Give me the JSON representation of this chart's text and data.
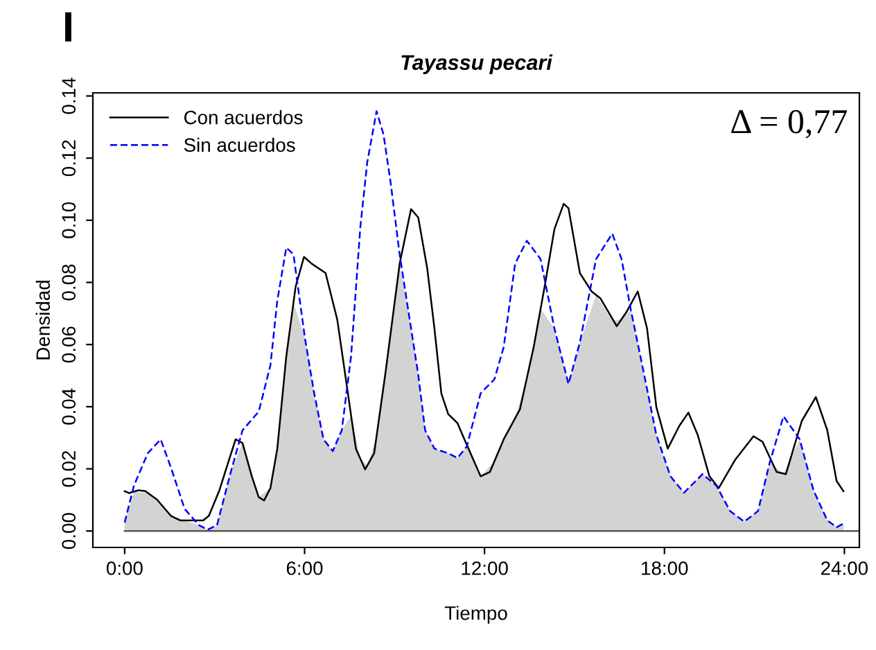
{
  "chart_data": {
    "type": "line",
    "title": "Tayassu pecari",
    "xlabel": "Tiempo",
    "ylabel": "Densidad",
    "annotations": [
      "I",
      "Δ = 0,77"
    ],
    "xlim": [
      -1.06,
      24.5
    ],
    "ylim": [
      -0.0053,
      0.141
    ],
    "xticks": [
      {
        "value": 0,
        "label": "0:00"
      },
      {
        "value": 6,
        "label": "6:00"
      },
      {
        "value": 12,
        "label": "12:00"
      },
      {
        "value": 18,
        "label": "18:00"
      },
      {
        "value": 24,
        "label": "24:00"
      }
    ],
    "yticks": [
      {
        "value": 0,
        "label": "0.00"
      },
      {
        "value": 0.02,
        "label": "0.02"
      },
      {
        "value": 0.04,
        "label": "0.04"
      },
      {
        "value": 0.06,
        "label": "0.06"
      },
      {
        "value": 0.08,
        "label": "0.08"
      },
      {
        "value": 0.1,
        "label": "0.10"
      },
      {
        "value": 0.12,
        "label": "0.12"
      },
      {
        "value": 0.14,
        "label": "0.14"
      }
    ],
    "grid": false,
    "legend": "top left",
    "ref_lines": [
      {
        "axis": "y",
        "value": 0,
        "color": "#555555"
      }
    ],
    "series": [
      {
        "type": "area",
        "color": "#d3d3d3",
        "x": [
          0,
          0.31,
          0.77,
          1.2,
          1.54,
          2.0,
          2.47,
          2.77,
          3.08,
          3.54,
          3.93,
          4.47,
          4.86,
          5.09,
          5.39,
          5.63,
          6.01,
          6.32,
          6.63,
          6.94,
          7.24,
          7.55,
          7.86,
          8.09,
          8.4,
          8.63,
          8.86,
          9.17,
          9.48,
          9.79,
          10.02,
          10.33,
          10.79,
          11.1,
          11.41,
          11.87,
          12.33,
          12.64,
          13.02,
          13.41,
          13.87,
          14.33,
          14.8,
          15.18,
          15.72,
          16.26,
          16.57,
          16.88,
          17.26,
          17.73,
          18.2,
          18.65,
          19.27,
          19.73,
          20.19,
          20.66,
          21.12,
          21.51,
          21.97,
          22.51,
          22.97,
          23.43,
          23.74,
          23.97
        ],
        "values": [
          0.0027,
          0.0126,
          0.0122,
          0.0087,
          0.0049,
          0.0034,
          0.0019,
          0.0004,
          0.0019,
          0.019,
          0.0283,
          0.0109,
          0.0138,
          0.0265,
          0.0562,
          0.0735,
          0.0622,
          0.0443,
          0.0295,
          0.0257,
          0.0324,
          0.0372,
          0.0233,
          0.021,
          0.0305,
          0.0463,
          0.063,
          0.086,
          0.0696,
          0.0503,
          0.0324,
          0.0265,
          0.025,
          0.0235,
          0.0272,
          0.0176,
          0.0224,
          0.0295,
          0.0363,
          0.0492,
          0.0715,
          0.0652,
          0.0473,
          0.0607,
          0.076,
          0.0677,
          0.0681,
          0.0711,
          0.0533,
          0.0309,
          0.0176,
          0.0123,
          0.0183,
          0.0146,
          0.0064,
          0.003,
          0.0064,
          0.022,
          0.0185,
          0.0295,
          0.0131,
          0.0034,
          0.0012,
          0.0024
        ]
      },
      {
        "name": "Con acuerdos",
        "color": "#000000",
        "line_style": "solid",
        "x": [
          0,
          0.15,
          0.46,
          0.69,
          1.08,
          1.54,
          1.85,
          2.62,
          2.81,
          3.16,
          3.51,
          3.7,
          3.93,
          4.24,
          4.47,
          4.65,
          4.86,
          5.09,
          5.39,
          5.7,
          5.98,
          6.24,
          6.7,
          7.09,
          7.4,
          7.71,
          8.02,
          8.32,
          8.71,
          9.17,
          9.55,
          9.79,
          10.09,
          10.33,
          10.56,
          10.79,
          11.1,
          11.33,
          11.87,
          12.18,
          12.64,
          13.18,
          13.64,
          14.03,
          14.33,
          14.64,
          14.8,
          15.18,
          15.57,
          15.87,
          16.41,
          16.73,
          17.11,
          17.42,
          17.73,
          18.11,
          18.5,
          18.8,
          19.11,
          19.5,
          19.81,
          20.35,
          20.97,
          21.27,
          21.74,
          22.05,
          22.58,
          23.05,
          23.43,
          23.74,
          23.97
        ],
        "values": [
          0.0128,
          0.0122,
          0.0131,
          0.0128,
          0.0101,
          0.0049,
          0.0034,
          0.0034,
          0.0049,
          0.0131,
          0.0238,
          0.0295,
          0.0283,
          0.0176,
          0.0109,
          0.0098,
          0.0138,
          0.0265,
          0.0562,
          0.0786,
          0.0882,
          0.086,
          0.083,
          0.068,
          0.0473,
          0.0265,
          0.0198,
          0.025,
          0.0518,
          0.086,
          0.1036,
          0.1009,
          0.0845,
          0.0652,
          0.0443,
          0.0376,
          0.0347,
          0.0295,
          0.0176,
          0.019,
          0.0295,
          0.0391,
          0.0592,
          0.08,
          0.0971,
          0.1053,
          0.1039,
          0.083,
          0.0771,
          0.0748,
          0.0659,
          0.0704,
          0.0771,
          0.0652,
          0.0399,
          0.0265,
          0.0339,
          0.0381,
          0.0309,
          0.0176,
          0.0138,
          0.0228,
          0.0305,
          0.0287,
          0.019,
          0.0183,
          0.0354,
          0.0431,
          0.0324,
          0.0161,
          0.0128
        ]
      },
      {
        "name": "Sin acuerdos",
        "color": "#0000ff",
        "line_style": "dashed",
        "x": [
          0,
          0.31,
          0.77,
          1.2,
          1.54,
          2.0,
          2.47,
          2.77,
          3.08,
          3.54,
          3.93,
          4.47,
          4.86,
          5.09,
          5.39,
          5.63,
          6.01,
          6.32,
          6.63,
          6.94,
          7.24,
          7.55,
          7.86,
          8.09,
          8.4,
          8.63,
          8.86,
          9.17,
          9.48,
          9.79,
          10.02,
          10.33,
          10.79,
          11.1,
          11.41,
          11.87,
          12.33,
          12.64,
          13.02,
          13.41,
          13.87,
          14.33,
          14.8,
          15.18,
          15.72,
          16.26,
          16.57,
          16.88,
          17.26,
          17.73,
          18.2,
          18.65,
          19.27,
          19.73,
          20.19,
          20.66,
          21.12,
          21.51,
          21.97,
          22.51,
          22.97,
          23.43,
          23.74,
          23.97
        ],
        "values": [
          0.0027,
          0.0146,
          0.025,
          0.0295,
          0.0205,
          0.0071,
          0.0019,
          0.0004,
          0.0019,
          0.019,
          0.0324,
          0.0384,
          0.0533,
          0.0741,
          0.0912,
          0.089,
          0.0622,
          0.0443,
          0.0295,
          0.0257,
          0.0324,
          0.0562,
          0.0979,
          0.1187,
          0.1351,
          0.1277,
          0.1128,
          0.089,
          0.0696,
          0.0503,
          0.0324,
          0.0265,
          0.025,
          0.0235,
          0.0272,
          0.0443,
          0.0488,
          0.0592,
          0.086,
          0.0934,
          0.0875,
          0.0652,
          0.0473,
          0.0607,
          0.0875,
          0.0957,
          0.0875,
          0.0711,
          0.0533,
          0.0309,
          0.0176,
          0.0123,
          0.0183,
          0.0146,
          0.0064,
          0.003,
          0.0064,
          0.022,
          0.0369,
          0.0295,
          0.0131,
          0.0034,
          0.0012,
          0.0024
        ]
      }
    ]
  }
}
